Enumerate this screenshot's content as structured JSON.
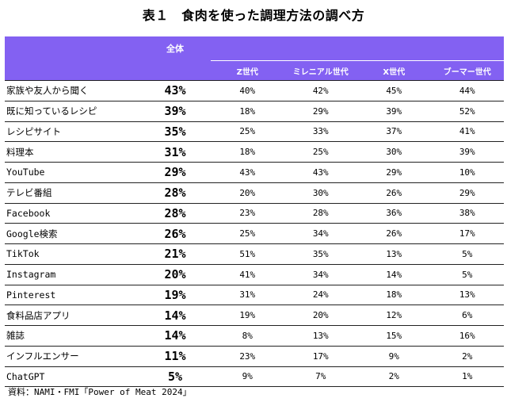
{
  "title": "表１　食肉を使った調理方法の調べ方",
  "header": {
    "total": "全体",
    "generations": [
      "Z世代",
      "ミレニアル世代",
      "X世代",
      "ブーマー世代"
    ]
  },
  "rows": [
    {
      "label": "家族や友人から聞く",
      "total": "43%",
      "values": [
        "40%",
        "42%",
        "45%",
        "44%"
      ]
    },
    {
      "label": "既に知っているレシピ",
      "total": "39%",
      "values": [
        "18%",
        "29%",
        "39%",
        "52%"
      ]
    },
    {
      "label": "レシピサイト",
      "total": "35%",
      "values": [
        "25%",
        "33%",
        "37%",
        "41%"
      ]
    },
    {
      "label": "料理本",
      "total": "31%",
      "values": [
        "18%",
        "25%",
        "30%",
        "39%"
      ]
    },
    {
      "label": "YouTube",
      "total": "29%",
      "values": [
        "43%",
        "43%",
        "29%",
        "10%"
      ]
    },
    {
      "label": "テレビ番組",
      "total": "28%",
      "values": [
        "20%",
        "30%",
        "26%",
        "29%"
      ]
    },
    {
      "label": "Facebook",
      "total": "28%",
      "values": [
        "23%",
        "28%",
        "36%",
        "38%"
      ]
    },
    {
      "label": "Google検索",
      "total": "26%",
      "values": [
        "25%",
        "34%",
        "26%",
        "17%"
      ]
    },
    {
      "label": "TikTok",
      "total": "21%",
      "values": [
        "51%",
        "35%",
        "13%",
        "5%"
      ]
    },
    {
      "label": "Instagram",
      "total": "20%",
      "values": [
        "41%",
        "34%",
        "14%",
        "5%"
      ]
    },
    {
      "label": "Pinterest",
      "total": "19%",
      "values": [
        "31%",
        "24%",
        "18%",
        "13%"
      ]
    },
    {
      "label": "食料品店アプリ",
      "total": "14%",
      "values": [
        "19%",
        "20%",
        "12%",
        "6%"
      ]
    },
    {
      "label": "雑誌",
      "total": "14%",
      "values": [
        "8%",
        "13%",
        "15%",
        "16%"
      ]
    },
    {
      "label": "インフルエンサー",
      "total": "11%",
      "values": [
        "23%",
        "17%",
        "9%",
        "2%"
      ]
    },
    {
      "label": "ChatGPT",
      "total": "5%",
      "values": [
        "9%",
        "7%",
        "2%",
        "1%"
      ]
    }
  ],
  "source": "資料：NAMI・FMI「Power of Meat 2024」",
  "colors": {
    "header_bg": "#8361f2",
    "header_text": "#ffffff",
    "rule": "#222222"
  }
}
